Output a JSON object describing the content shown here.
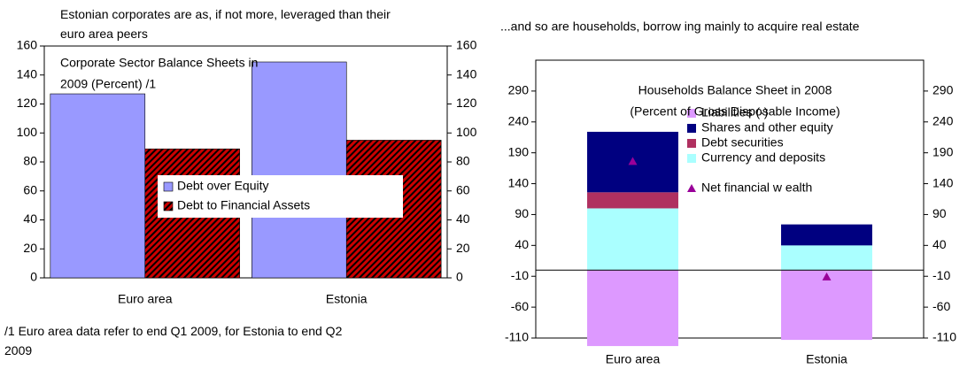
{
  "chart_data": [
    {
      "type": "bar",
      "title": "Estonian corporates are as, if not more, leveraged than their euro area peers",
      "inner_title": [
        "Corporate Sector Balance Sheets in",
        "2009 (Percent) /1"
      ],
      "footnote": "/1 Euro area data refer to end Q1 2009, for Estonia to end Q2 2009",
      "categories": [
        "Euro area",
        "Estonia"
      ],
      "series": [
        {
          "name": "Debt over Equity",
          "color": "#9999ff",
          "values": [
            127,
            149
          ]
        },
        {
          "name": "Debt to Financial Assets",
          "color": "#cc0000",
          "hatch": true,
          "values": [
            89,
            95
          ]
        }
      ],
      "ylim": [
        0,
        160
      ],
      "yticks": [
        0,
        20,
        40,
        60,
        80,
        100,
        120,
        140,
        160
      ],
      "y2lim": [
        0,
        160
      ],
      "y2ticks": [
        0,
        20,
        40,
        60,
        80,
        100,
        120,
        140,
        160
      ]
    },
    {
      "type": "stacked-bar",
      "title": "...and so are households, borrow ing mainly to acquire real estate",
      "inner_title": [
        "Households Balance Sheet  in 2008",
        "(Percent of Gross Disposable Income)"
      ],
      "categories": [
        "Euro area",
        "Estonia"
      ],
      "series": [
        {
          "name": "Liabilities (-)",
          "color": "#dd99ff",
          "values": [
            -123,
            -113
          ]
        },
        {
          "name": "Shares and other equity",
          "color": "#000080",
          "values": [
            98,
            34
          ]
        },
        {
          "name": "Debt securities",
          "color": "#b03060",
          "values": [
            26,
            0
          ]
        },
        {
          "name": "Currency and deposits",
          "color": "#aaffff",
          "values": [
            100,
            40
          ]
        }
      ],
      "markers": {
        "name": "Net financial w ealth",
        "color": "#990099",
        "values": [
          176,
          -11
        ]
      },
      "ylim": [
        -110,
        340
      ],
      "yticks": [
        -110,
        -60,
        -10,
        40,
        90,
        140,
        190,
        240,
        290
      ],
      "y2lim": [
        -110,
        340
      ],
      "y2ticks": [
        -110,
        -60,
        -10,
        40,
        90,
        140,
        190,
        240,
        290
      ]
    }
  ]
}
